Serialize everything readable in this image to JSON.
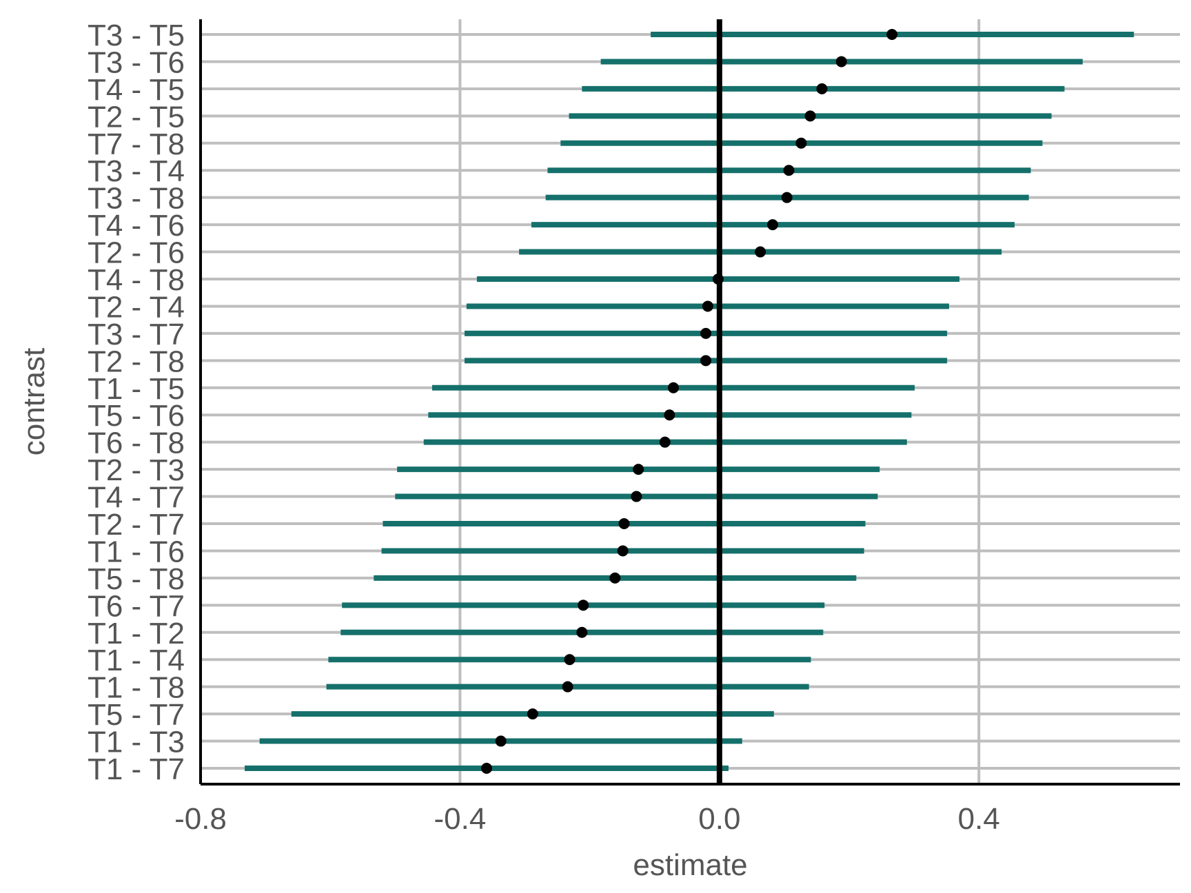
{
  "chart_data": {
    "type": "pointrange",
    "xlabel": "estimate",
    "ylabel": "contrast",
    "xlim": [
      -0.8,
      0.71
    ],
    "xticks": [
      -0.8,
      -0.4,
      0.0,
      0.4
    ],
    "xtick_labels": [
      "-0.8",
      "-0.4",
      "0.0",
      "0.4"
    ],
    "reference_line_x": 0.0,
    "grid": true,
    "legend": "none",
    "colors": {
      "interval": "#15706b",
      "point": "#000000",
      "grid": "#bebebe",
      "axis": "#000000"
    },
    "contrasts": [
      {
        "label": "T3 - T5",
        "estimate": 0.266,
        "lower": -0.106,
        "upper": 0.639
      },
      {
        "label": "T3 - T6",
        "estimate": 0.188,
        "lower": -0.183,
        "upper": 0.56
      },
      {
        "label": "T4 - T5",
        "estimate": 0.158,
        "lower": -0.212,
        "upper": 0.532
      },
      {
        "label": "T2 - T5",
        "estimate": 0.14,
        "lower": -0.232,
        "upper": 0.512
      },
      {
        "label": "T7 - T8",
        "estimate": 0.126,
        "lower": -0.245,
        "upper": 0.498
      },
      {
        "label": "T3 - T4",
        "estimate": 0.107,
        "lower": -0.265,
        "upper": 0.48
      },
      {
        "label": "T3 - T8",
        "estimate": 0.104,
        "lower": -0.268,
        "upper": 0.477
      },
      {
        "label": "T4 - T6",
        "estimate": 0.082,
        "lower": -0.29,
        "upper": 0.455
      },
      {
        "label": "T2 - T6",
        "estimate": 0.063,
        "lower": -0.309,
        "upper": 0.435
      },
      {
        "label": "T4 - T8",
        "estimate": -0.002,
        "lower": -0.374,
        "upper": 0.37
      },
      {
        "label": "T2 - T4",
        "estimate": -0.018,
        "lower": -0.39,
        "upper": 0.354
      },
      {
        "label": "T3 - T7",
        "estimate": -0.021,
        "lower": -0.393,
        "upper": 0.351
      },
      {
        "label": "T2 - T8",
        "estimate": -0.021,
        "lower": -0.393,
        "upper": 0.351
      },
      {
        "label": "T1 - T5",
        "estimate": -0.071,
        "lower": -0.443,
        "upper": 0.301
      },
      {
        "label": "T5 - T6",
        "estimate": -0.077,
        "lower": -0.449,
        "upper": 0.296
      },
      {
        "label": "T6 - T8",
        "estimate": -0.084,
        "lower": -0.456,
        "upper": 0.289
      },
      {
        "label": "T2 - T3",
        "estimate": -0.125,
        "lower": -0.497,
        "upper": 0.247
      },
      {
        "label": "T4 - T7",
        "estimate": -0.128,
        "lower": -0.5,
        "upper": 0.244
      },
      {
        "label": "T2 - T7",
        "estimate": -0.147,
        "lower": -0.519,
        "upper": 0.225
      },
      {
        "label": "T1 - T6",
        "estimate": -0.149,
        "lower": -0.521,
        "upper": 0.223
      },
      {
        "label": "T5 - T8",
        "estimate": -0.161,
        "lower": -0.533,
        "upper": 0.211
      },
      {
        "label": "T6 - T7",
        "estimate": -0.21,
        "lower": -0.582,
        "upper": 0.162
      },
      {
        "label": "T1 - T2",
        "estimate": -0.212,
        "lower": -0.584,
        "upper": 0.16
      },
      {
        "label": "T1 - T4",
        "estimate": -0.231,
        "lower": -0.603,
        "upper": 0.141
      },
      {
        "label": "T1 - T8",
        "estimate": -0.234,
        "lower": -0.606,
        "upper": 0.138
      },
      {
        "label": "T5 - T7",
        "estimate": -0.288,
        "lower": -0.66,
        "upper": 0.084
      },
      {
        "label": "T1 - T3",
        "estimate": -0.337,
        "lower": -0.709,
        "upper": 0.035
      },
      {
        "label": "T1 - T7",
        "estimate": -0.359,
        "lower": -0.732,
        "upper": 0.014
      }
    ]
  }
}
